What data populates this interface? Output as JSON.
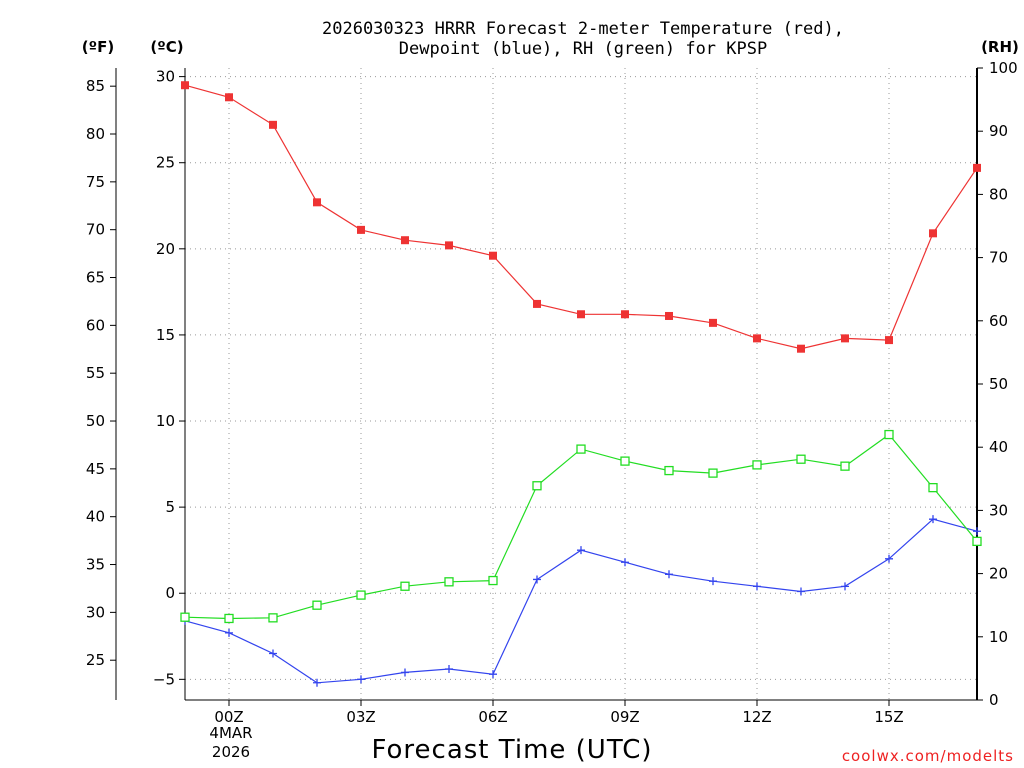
{
  "chart_data": {
    "type": "line",
    "title_lines": [
      "2026030323 HRRR Forecast 2-meter Temperature (red),",
      "Dewpoint (blue), RH (green) for KPSP"
    ],
    "left_outer_axis": {
      "unit_label": "(ºF)",
      "ticks": [
        25,
        30,
        35,
        40,
        45,
        50,
        55,
        60,
        65,
        70,
        75,
        80,
        85
      ]
    },
    "left_axis": {
      "unit_label": "(ºC)",
      "ticks": [
        -5,
        0,
        5,
        10,
        15,
        20,
        25,
        30
      ],
      "ylim": [
        -6.2,
        30.5
      ]
    },
    "right_axis": {
      "unit_label": "(RH)",
      "ticks": [
        0,
        10,
        20,
        30,
        40,
        50,
        60,
        70,
        80,
        90,
        100
      ],
      "ylim": [
        0,
        100
      ]
    },
    "xlabel": "Forecast Time (UTC)",
    "x_hours": [
      -1,
      0,
      1,
      2,
      3,
      4,
      5,
      6,
      7,
      8,
      9,
      10,
      11,
      12,
      13,
      14,
      15,
      16,
      17
    ],
    "xlim": [
      -1,
      17
    ],
    "x_ticks": [
      {
        "hour": 0,
        "label": "00Z"
      },
      {
        "hour": 3,
        "label": "03Z"
      },
      {
        "hour": 6,
        "label": "06Z"
      },
      {
        "hour": 9,
        "label": "09Z"
      },
      {
        "hour": 12,
        "label": "12Z"
      },
      {
        "hour": 15,
        "label": "15Z"
      }
    ],
    "date_lines": [
      "4MAR",
      "2026"
    ],
    "series": [
      {
        "name": "Temperature",
        "axis": "celsius",
        "color": "#ee3333",
        "marker": "filled-square",
        "values": [
          29.5,
          28.8,
          27.2,
          22.7,
          21.1,
          20.5,
          20.2,
          19.6,
          16.8,
          16.2,
          16.2,
          16.1,
          15.7,
          14.8,
          14.2,
          14.8,
          14.7,
          20.9,
          24.7
        ]
      },
      {
        "name": "Dewpoint",
        "axis": "celsius",
        "color": "#3344ee",
        "marker": "plus",
        "values": [
          -1.6,
          -2.3,
          -3.5,
          -5.2,
          -5.0,
          -4.6,
          -4.4,
          -4.7,
          0.8,
          2.5,
          1.8,
          1.1,
          0.7,
          0.4,
          0.1,
          0.4,
          2.0,
          4.3,
          3.6
        ]
      },
      {
        "name": "RH",
        "axis": "rh",
        "color": "#22dd22",
        "marker": "open-square",
        "values": [
          13.1,
          12.9,
          13.0,
          15.0,
          16.6,
          18.0,
          18.7,
          18.9,
          33.9,
          39.7,
          37.8,
          36.3,
          35.9,
          37.2,
          38.1,
          37.0,
          42.0,
          33.6,
          25.1
        ]
      }
    ]
  },
  "watermark": {
    "text": "coolwx.com/modelts",
    "color": "#ee2222"
  }
}
